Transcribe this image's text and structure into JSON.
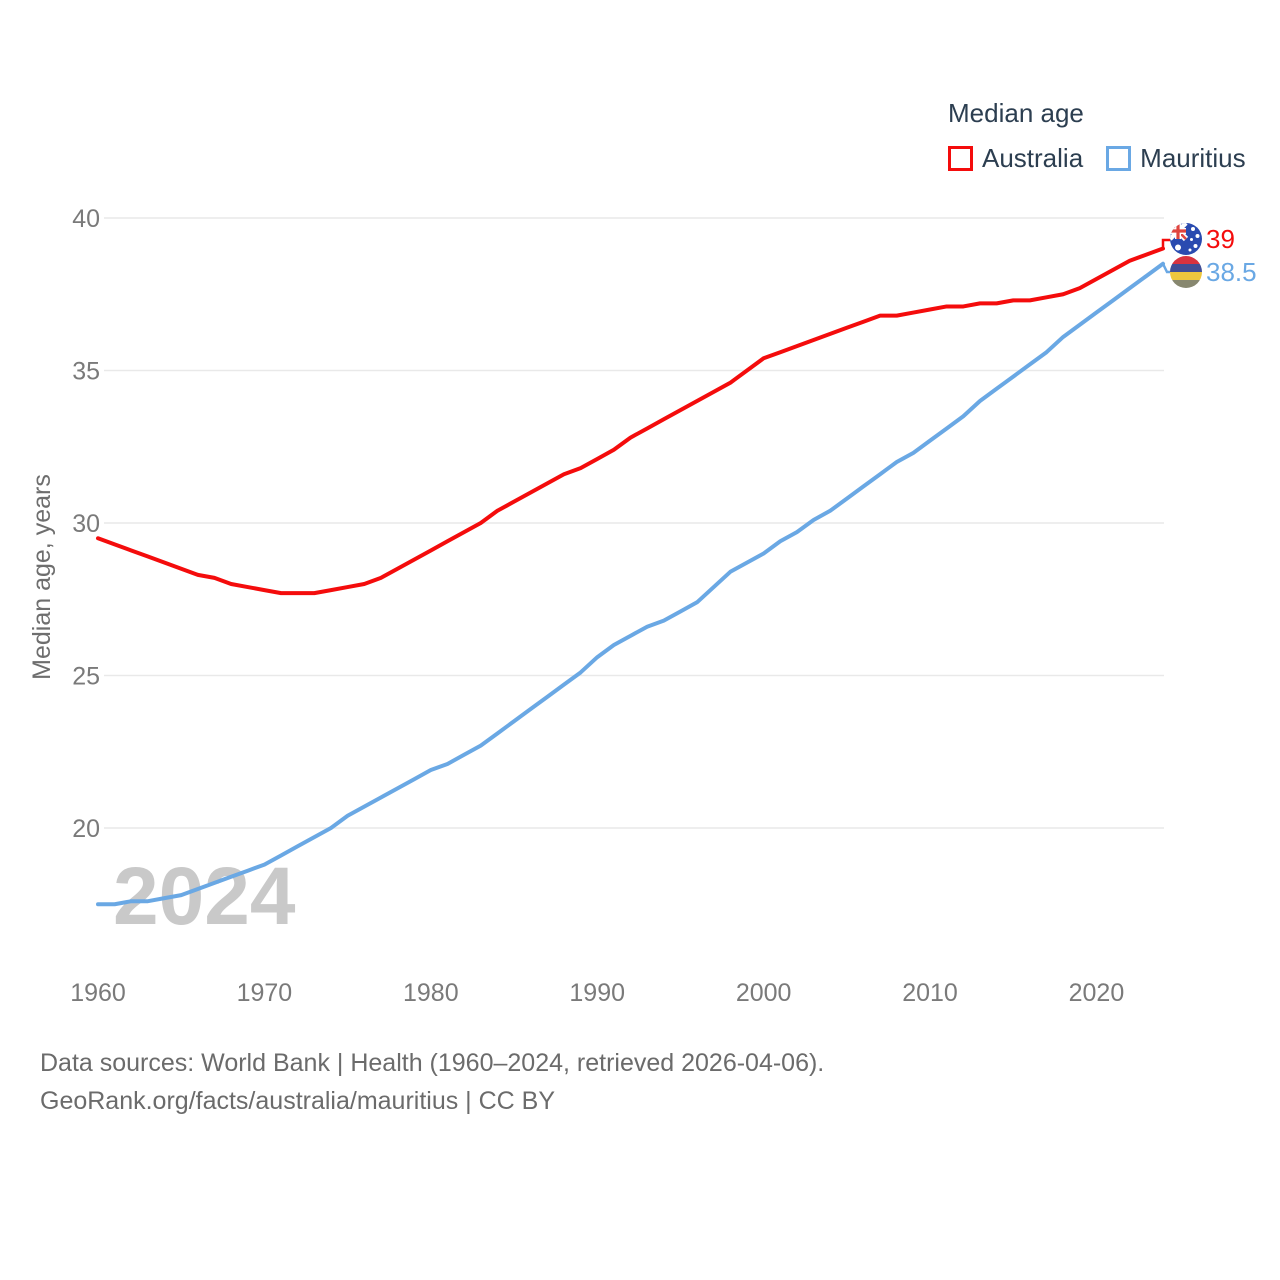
{
  "legend": {
    "title": "Median age"
  },
  "watermark": "2024",
  "y_axis": {
    "title": "Median age, years",
    "ticks": [
      40,
      35,
      30,
      25,
      20
    ]
  },
  "x_axis": {
    "ticks": [
      1960,
      1970,
      1980,
      1990,
      2000,
      2010,
      2020
    ]
  },
  "end_labels": {
    "australia": "39",
    "mauritius": "38.5"
  },
  "footer": {
    "line1": "Data sources: World Bank | Health (1960–2024, retrieved 2026-04-06).",
    "line2": "GeoRank.org/facts/australia/mauritius | CC BY"
  },
  "chart_data": {
    "type": "line",
    "title": "Median age",
    "xlabel": "",
    "ylabel": "Median age, years",
    "x_range": [
      1960,
      2024
    ],
    "ylim": [
      17,
      40.5
    ],
    "grid": "horizontal",
    "legend_position": "top-right",
    "x": [
      1960,
      1961,
      1962,
      1963,
      1964,
      1965,
      1966,
      1967,
      1968,
      1969,
      1970,
      1971,
      1972,
      1973,
      1974,
      1975,
      1976,
      1977,
      1978,
      1979,
      1980,
      1981,
      1982,
      1983,
      1984,
      1985,
      1986,
      1987,
      1988,
      1989,
      1990,
      1991,
      1992,
      1993,
      1994,
      1995,
      1996,
      1997,
      1998,
      1999,
      2000,
      2001,
      2002,
      2003,
      2004,
      2005,
      2006,
      2007,
      2008,
      2009,
      2010,
      2011,
      2012,
      2013,
      2014,
      2015,
      2016,
      2017,
      2018,
      2019,
      2020,
      2021,
      2022,
      2023,
      2024
    ],
    "series": [
      {
        "name": "Australia",
        "color": "#f40c0c",
        "end_value": 39,
        "values": [
          29.5,
          29.3,
          29.1,
          28.9,
          28.7,
          28.5,
          28.3,
          28.2,
          28.0,
          27.9,
          27.8,
          27.7,
          27.7,
          27.7,
          27.8,
          27.9,
          28.0,
          28.2,
          28.5,
          28.8,
          29.1,
          29.4,
          29.7,
          30.0,
          30.4,
          30.7,
          31.0,
          31.3,
          31.6,
          31.8,
          32.1,
          32.4,
          32.8,
          33.1,
          33.4,
          33.7,
          34.0,
          34.3,
          34.6,
          35.0,
          35.4,
          35.6,
          35.8,
          36.0,
          36.2,
          36.4,
          36.6,
          36.8,
          36.8,
          36.9,
          37.0,
          37.1,
          37.1,
          37.2,
          37.2,
          37.3,
          37.3,
          37.4,
          37.5,
          37.7,
          38.0,
          38.3,
          38.6,
          38.8,
          39.0
        ]
      },
      {
        "name": "Mauritius",
        "color": "#6aa8e4",
        "end_value": 38.5,
        "values": [
          17.5,
          17.5,
          17.6,
          17.6,
          17.7,
          17.8,
          18.0,
          18.2,
          18.4,
          18.6,
          18.8,
          19.1,
          19.4,
          19.7,
          20.0,
          20.4,
          20.7,
          21.0,
          21.3,
          21.6,
          21.9,
          22.1,
          22.4,
          22.7,
          23.1,
          23.5,
          23.9,
          24.3,
          24.7,
          25.1,
          25.6,
          26.0,
          26.3,
          26.6,
          26.8,
          27.1,
          27.4,
          27.9,
          28.4,
          28.7,
          29.0,
          29.4,
          29.7,
          30.1,
          30.4,
          30.8,
          31.2,
          31.6,
          32.0,
          32.3,
          32.7,
          33.1,
          33.5,
          34.0,
          34.4,
          34.8,
          35.2,
          35.6,
          36.1,
          36.5,
          36.9,
          37.3,
          37.7,
          38.1,
          38.5
        ]
      }
    ]
  }
}
